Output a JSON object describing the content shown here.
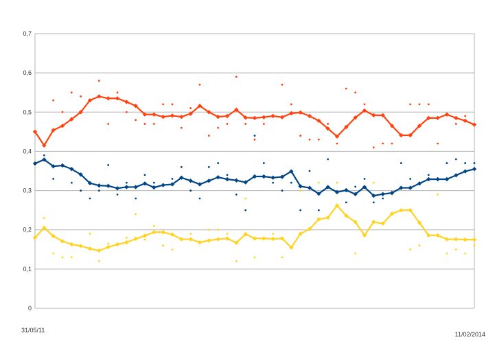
{
  "chart_data": {
    "type": "line",
    "title": "",
    "xlabel": "",
    "ylabel": "",
    "ylim": [
      0,
      0.7
    ],
    "grid": true,
    "legend": "none",
    "y_ticks": [
      "0",
      "0,1",
      "0,2",
      "0,3",
      "0,4",
      "0,5",
      "0,6",
      "0,7"
    ],
    "x_tick_labels": {
      "first": "31/05/11",
      "last": "11/02/2014"
    },
    "colors": {
      "orange": "#ff420e",
      "blue": "#004586",
      "yellow": "#ffd320",
      "grid": "#b3b3b3"
    },
    "series": [
      {
        "name": "orange-trend",
        "color": "#ff420e",
        "values": [
          0.45,
          0.415,
          0.454,
          0.465,
          0.482,
          0.5,
          0.53,
          0.54,
          0.535,
          0.535,
          0.526,
          0.516,
          0.494,
          0.494,
          0.488,
          0.491,
          0.488,
          0.496,
          0.516,
          0.5,
          0.488,
          0.49,
          0.506,
          0.486,
          0.485,
          0.487,
          0.49,
          0.487,
          0.497,
          0.499,
          0.49,
          0.478,
          0.458,
          0.438,
          0.462,
          0.486,
          0.504,
          0.492,
          0.492,
          0.465,
          0.441,
          0.441,
          0.465,
          0.485,
          0.485,
          0.494,
          0.485,
          0.478,
          0.468
        ]
      },
      {
        "name": "blue-trend",
        "color": "#004586",
        "values": [
          0.369,
          0.379,
          0.362,
          0.364,
          0.355,
          0.341,
          0.319,
          0.313,
          0.312,
          0.306,
          0.309,
          0.309,
          0.318,
          0.308,
          0.314,
          0.316,
          0.333,
          0.325,
          0.316,
          0.325,
          0.334,
          0.329,
          0.326,
          0.321,
          0.336,
          0.336,
          0.333,
          0.335,
          0.349,
          0.311,
          0.307,
          0.292,
          0.309,
          0.296,
          0.301,
          0.291,
          0.309,
          0.287,
          0.291,
          0.294,
          0.307,
          0.307,
          0.318,
          0.329,
          0.329,
          0.329,
          0.339,
          0.349,
          0.355
        ]
      },
      {
        "name": "yellow-trend",
        "color": "#ffd320",
        "values": [
          0.18,
          0.205,
          0.184,
          0.171,
          0.163,
          0.159,
          0.152,
          0.147,
          0.156,
          0.163,
          0.168,
          0.177,
          0.185,
          0.194,
          0.194,
          0.188,
          0.176,
          0.176,
          0.168,
          0.173,
          0.176,
          0.178,
          0.167,
          0.189,
          0.178,
          0.178,
          0.177,
          0.178,
          0.155,
          0.19,
          0.202,
          0.227,
          0.231,
          0.262,
          0.236,
          0.22,
          0.186,
          0.22,
          0.216,
          0.241,
          0.25,
          0.25,
          0.218,
          0.186,
          0.186,
          0.176,
          0.176,
          0.175,
          0.175
        ]
      }
    ],
    "scatter": [
      {
        "name": "orange-points",
        "color": "#ff420e",
        "points": [
          [
            2,
            0.53
          ],
          [
            3,
            0.5
          ],
          [
            4,
            0.55
          ],
          [
            5,
            0.54
          ],
          [
            7,
            0.58
          ],
          [
            8,
            0.47
          ],
          [
            9,
            0.55
          ],
          [
            10,
            0.5
          ],
          [
            11,
            0.48
          ],
          [
            12,
            0.47
          ],
          [
            13,
            0.47
          ],
          [
            14,
            0.52
          ],
          [
            15,
            0.52
          ],
          [
            16,
            0.46
          ],
          [
            17,
            0.51
          ],
          [
            18,
            0.57
          ],
          [
            19,
            0.44
          ],
          [
            20,
            0.46
          ],
          [
            21,
            0.47
          ],
          [
            22,
            0.59
          ],
          [
            23,
            0.47
          ],
          [
            24,
            0.43
          ],
          [
            25,
            0.47
          ],
          [
            27,
            0.57
          ],
          [
            28,
            0.52
          ],
          [
            29,
            0.44
          ],
          [
            30,
            0.43
          ],
          [
            31,
            0.43
          ],
          [
            32,
            0.47
          ],
          [
            33,
            0.42
          ],
          [
            34,
            0.56
          ],
          [
            35,
            0.55
          ],
          [
            36,
            0.52
          ],
          [
            37,
            0.41
          ],
          [
            38,
            0.42
          ],
          [
            39,
            0.42
          ],
          [
            41,
            0.52
          ],
          [
            42,
            0.52
          ],
          [
            43,
            0.52
          ],
          [
            44,
            0.42
          ],
          [
            46,
            0.47
          ],
          [
            47,
            0.49
          ]
        ]
      },
      {
        "name": "blue-points",
        "color": "#004586",
        "points": [
          [
            1,
            0.39
          ],
          [
            2,
            0.33
          ],
          [
            4,
            0.32
          ],
          [
            5,
            0.3
          ],
          [
            6,
            0.28
          ],
          [
            7,
            0.3
          ],
          [
            8,
            0.365
          ],
          [
            9,
            0.29
          ],
          [
            10,
            0.32
          ],
          [
            11,
            0.28
          ],
          [
            12,
            0.34
          ],
          [
            13,
            0.32
          ],
          [
            15,
            0.33
          ],
          [
            16,
            0.36
          ],
          [
            17,
            0.3
          ],
          [
            18,
            0.28
          ],
          [
            19,
            0.36
          ],
          [
            20,
            0.37
          ],
          [
            21,
            0.34
          ],
          [
            22,
            0.29
          ],
          [
            23,
            0.25
          ],
          [
            24,
            0.44
          ],
          [
            25,
            0.37
          ],
          [
            26,
            0.32
          ],
          [
            27,
            0.3
          ],
          [
            28,
            0.32
          ],
          [
            29,
            0.25
          ],
          [
            30,
            0.35
          ],
          [
            31,
            0.25
          ],
          [
            32,
            0.38
          ],
          [
            34,
            0.27
          ],
          [
            35,
            0.31
          ],
          [
            36,
            0.33
          ],
          [
            37,
            0.27
          ],
          [
            38,
            0.28
          ],
          [
            40,
            0.37
          ],
          [
            41,
            0.33
          ],
          [
            43,
            0.34
          ],
          [
            45,
            0.37
          ],
          [
            46,
            0.38
          ],
          [
            47,
            0.37
          ],
          [
            48,
            0.37
          ]
        ]
      },
      {
        "name": "yellow-points",
        "color": "#ffd320",
        "points": [
          [
            1,
            0.23
          ],
          [
            2,
            0.14
          ],
          [
            3,
            0.13
          ],
          [
            4,
            0.13
          ],
          [
            6,
            0.19
          ],
          [
            7,
            0.12
          ],
          [
            8,
            0.165
          ],
          [
            10,
            0.18
          ],
          [
            11,
            0.24
          ],
          [
            12,
            0.175
          ],
          [
            13,
            0.21
          ],
          [
            14,
            0.16
          ],
          [
            15,
            0.15
          ],
          [
            17,
            0.19
          ],
          [
            19,
            0.2
          ],
          [
            20,
            0.2
          ],
          [
            21,
            0.19
          ],
          [
            22,
            0.12
          ],
          [
            23,
            0.28
          ],
          [
            24,
            0.13
          ],
          [
            26,
            0.19
          ],
          [
            27,
            0.13
          ],
          [
            29,
            0.3
          ],
          [
            31,
            0.32
          ],
          [
            33,
            0.32
          ],
          [
            35,
            0.14
          ],
          [
            37,
            0.32
          ],
          [
            39,
            0.29
          ],
          [
            41,
            0.15
          ],
          [
            42,
            0.16
          ],
          [
            44,
            0.29
          ],
          [
            45,
            0.14
          ],
          [
            46,
            0.15
          ],
          [
            47,
            0.14
          ],
          [
            48,
            0.16
          ]
        ]
      }
    ]
  }
}
